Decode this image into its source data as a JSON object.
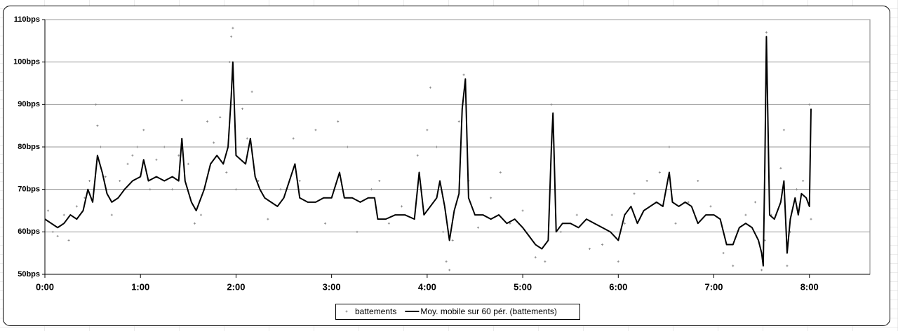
{
  "chart_data": {
    "type": "line",
    "xlim": [
      0,
      518
    ],
    "ylim": [
      50,
      110
    ],
    "xticks": [
      {
        "value": 0,
        "label": "0:00"
      },
      {
        "value": 60,
        "label": "1:00"
      },
      {
        "value": 120,
        "label": "2:00"
      },
      {
        "value": 180,
        "label": "3:00"
      },
      {
        "value": 240,
        "label": "4:00"
      },
      {
        "value": 300,
        "label": "5:00"
      },
      {
        "value": 360,
        "label": "6:00"
      },
      {
        "value": 420,
        "label": "7:00"
      },
      {
        "value": 480,
        "label": "8:00"
      }
    ],
    "yticks": [
      {
        "value": 50,
        "label": "50bps"
      },
      {
        "value": 60,
        "label": "60bps"
      },
      {
        "value": 70,
        "label": "70bps"
      },
      {
        "value": 80,
        "label": "80bps"
      },
      {
        "value": 90,
        "label": "90bps"
      },
      {
        "value": 100,
        "label": "100bps"
      },
      {
        "value": 110,
        "label": "110bps"
      }
    ],
    "grid": true,
    "legend": "bottom",
    "series": [
      {
        "name": "battements",
        "color": "#8c8c8c",
        "marker": "plus",
        "x": [
          2,
          5,
          8,
          12,
          15,
          20,
          25,
          28,
          32,
          33,
          35,
          38,
          42,
          47,
          52,
          55,
          58,
          62,
          66,
          70,
          75,
          80,
          84,
          86,
          90,
          94,
          98,
          102,
          106,
          110,
          114,
          116,
          117,
          118,
          120,
          124,
          127,
          130,
          134,
          140,
          148,
          156,
          160,
          170,
          176,
          184,
          190,
          196,
          205,
          210,
          216,
          224,
          234,
          240,
          242,
          246,
          250,
          252,
          254,
          256,
          260,
          263,
          266,
          272,
          280,
          286,
          292,
          300,
          308,
          314,
          318,
          324,
          334,
          342,
          350,
          356,
          360,
          364,
          370,
          378,
          386,
          392,
          396,
          404,
          410,
          418,
          426,
          432,
          440,
          446,
          450,
          452,
          453,
          456,
          462,
          464,
          466,
          468,
          472,
          476,
          480,
          481
        ],
        "values": [
          65,
          60,
          59,
          64,
          58,
          66,
          68,
          72,
          90,
          85,
          80,
          73,
          64,
          72,
          76,
          78,
          80,
          84,
          70,
          77,
          80,
          70,
          78,
          91,
          76,
          62,
          64,
          86,
          81,
          87,
          74,
          100,
          106,
          108,
          70,
          89,
          82,
          93,
          72,
          63,
          70,
          82,
          72,
          84,
          62,
          86,
          80,
          60,
          70,
          72,
          62,
          66,
          78,
          84,
          94,
          80,
          60,
          53,
          51,
          58,
          86,
          97,
          72,
          61,
          68,
          74,
          62,
          65,
          54,
          53,
          90,
          60,
          64,
          56,
          57,
          64,
          53,
          62,
          69,
          72,
          74,
          80,
          62,
          67,
          72,
          66,
          55,
          52,
          64,
          67,
          51,
          58,
          107,
          64,
          75,
          84,
          52,
          60,
          70,
          72,
          90,
          63
        ]
      },
      {
        "name": "Moy. mobile sur 60 pér. (battements)",
        "color": "#000000",
        "x": [
          0,
          4,
          8,
          12,
          16,
          20,
          24,
          27,
          30,
          33,
          36,
          39,
          42,
          46,
          50,
          55,
          60,
          62,
          65,
          70,
          75,
          80,
          84,
          86,
          88,
          92,
          95,
          100,
          104,
          108,
          112,
          115,
          117,
          118,
          120,
          123,
          126,
          129,
          132,
          135,
          138,
          142,
          146,
          150,
          157,
          160,
          165,
          170,
          175,
          180,
          185,
          188,
          193,
          198,
          203,
          207,
          209,
          214,
          220,
          226,
          232,
          235,
          238,
          242,
          246,
          248,
          251,
          254,
          257,
          260,
          262,
          264,
          266,
          270,
          275,
          280,
          285,
          290,
          295,
          300,
          304,
          308,
          312,
          316,
          318,
          319,
          321,
          325,
          330,
          335,
          340,
          345,
          350,
          355,
          360,
          364,
          368,
          372,
          376,
          380,
          384,
          388,
          392,
          394,
          398,
          402,
          406,
          410,
          415,
          420,
          424,
          428,
          432,
          436,
          440,
          444,
          448,
          450,
          451,
          452,
          453,
          455,
          458,
          462,
          464,
          466,
          468,
          471,
          473,
          475,
          478,
          480,
          481
        ],
        "values": [
          63,
          62,
          61,
          62,
          64,
          63,
          65,
          70,
          67,
          78,
          74,
          69,
          67,
          68,
          70,
          72,
          73,
          77,
          72,
          73,
          72,
          73,
          72,
          82,
          72,
          67,
          65,
          70,
          76,
          78,
          76,
          80,
          92,
          100,
          78,
          77,
          76,
          82,
          73,
          70,
          68,
          67,
          66,
          68,
          76,
          68,
          67,
          67,
          68,
          68,
          74,
          68,
          68,
          67,
          68,
          68,
          63,
          63,
          64,
          64,
          63,
          74,
          64,
          66,
          68,
          72,
          66,
          58,
          65,
          69,
          89,
          96,
          68,
          64,
          64,
          63,
          64,
          62,
          63,
          61,
          59,
          57,
          56,
          58,
          80,
          88,
          60,
          62,
          62,
          61,
          63,
          62,
          61,
          60,
          58,
          64,
          66,
          62,
          65,
          66,
          67,
          66,
          74,
          67,
          66,
          67,
          66,
          62,
          64,
          64,
          63,
          57,
          57,
          61,
          62,
          61,
          58,
          55,
          52,
          75,
          106,
          64,
          63,
          67,
          72,
          55,
          63,
          68,
          64,
          69,
          68,
          66,
          89
        ]
      }
    ]
  }
}
